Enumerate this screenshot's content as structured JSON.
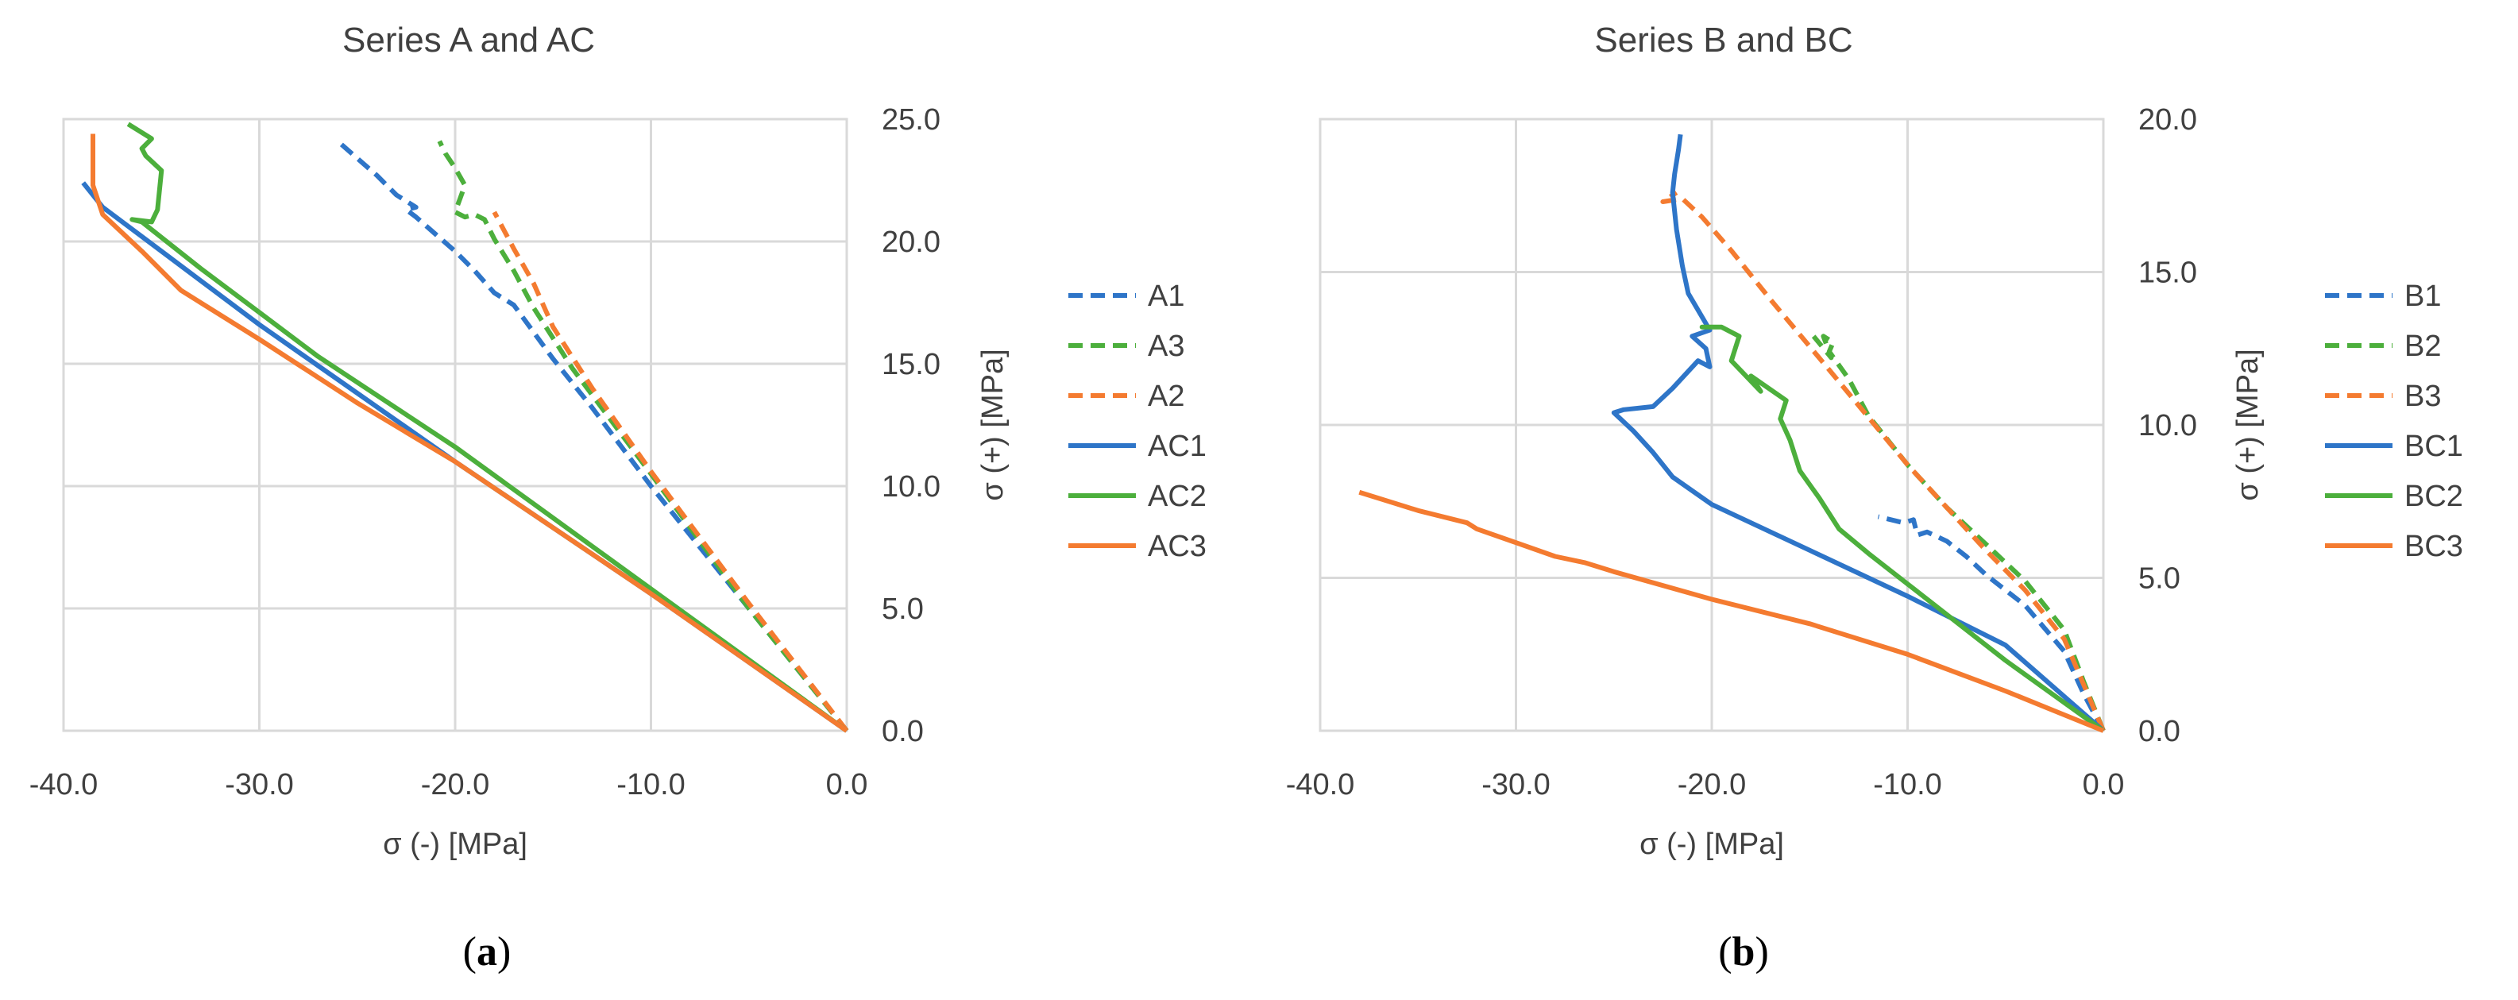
{
  "chart_data": [
    {
      "type": "line",
      "title": "Series A and AC",
      "xlabel": "σ (-) [MPa]",
      "ylabel": "σ (+) [MPa]",
      "panel_tag": "a",
      "xlim": [
        -40,
        0
      ],
      "ylim": [
        0,
        25
      ],
      "xticks": [
        -40,
        -30,
        -20,
        -10,
        0
      ],
      "xtick_labels": [
        "-40.0",
        "-30.0",
        "-20.0",
        "-10.0",
        "0.0"
      ],
      "yticks": [
        0,
        5,
        10,
        15,
        20,
        25
      ],
      "ytick_labels": [
        "0.0",
        "5.0",
        "10.0",
        "15.0",
        "20.0",
        "25.0"
      ],
      "grid": true,
      "y_axis_side": "right",
      "legend_position": "right",
      "series": [
        {
          "name": "A1",
          "color": "#2E75C8",
          "dash": "dashed",
          "x": [
            0,
            -5,
            -10,
            -13,
            -15,
            -17,
            -18,
            -19,
            -20,
            -21,
            -22,
            -22.5,
            -22,
            -23,
            -24,
            -25,
            -26
          ],
          "y": [
            0,
            5,
            10,
            13.2,
            15.2,
            17.4,
            17.9,
            18.8,
            19.6,
            20.3,
            21,
            21.3,
            21.4,
            21.9,
            22.7,
            23.4,
            24.1
          ]
        },
        {
          "name": "A3",
          "color": "#4CAF3C",
          "dash": "dashed",
          "x": [
            0,
            -5,
            -10,
            -14,
            -16,
            -17,
            -18,
            -18.5,
            -19,
            -19.5,
            -20,
            -19.5,
            -20,
            -20.5,
            -20.8
          ],
          "y": [
            0,
            5,
            10.5,
            14.8,
            17.3,
            18.8,
            20.1,
            20.9,
            21.1,
            21.0,
            21.2,
            22.3,
            23.0,
            23.6,
            24.1
          ]
        },
        {
          "name": "A2",
          "color": "#F47B30",
          "dash": "dashed",
          "x": [
            0,
            -5,
            -10,
            -13,
            -15,
            -16,
            -17,
            -18
          ],
          "y": [
            0,
            5.2,
            10.6,
            14,
            16.5,
            18.3,
            19.7,
            21.2
          ]
        },
        {
          "name": "AC1",
          "color": "#2E75C8",
          "dash": "solid",
          "x": [
            0,
            -10,
            -20,
            -25,
            -30,
            -35,
            -38,
            -39
          ],
          "y": [
            0,
            5.6,
            11,
            13.8,
            16.6,
            19.6,
            21.4,
            22.4
          ]
        },
        {
          "name": "AC2",
          "color": "#4CAF3C",
          "dash": "solid",
          "x": [
            0,
            -10,
            -20,
            -27,
            -30,
            -33,
            -36,
            -36.5,
            -35.5,
            -35.2,
            -35,
            -35.8,
            -36,
            -35.5,
            -36.7
          ],
          "y": [
            0,
            5.8,
            11.6,
            15.3,
            17.1,
            18.9,
            20.8,
            20.9,
            20.8,
            21.3,
            22.9,
            23.5,
            23.8,
            24.2,
            24.8
          ]
        },
        {
          "name": "AC3",
          "color": "#F47B30",
          "dash": "solid",
          "x": [
            0,
            -10,
            -20,
            -25,
            -30,
            -34,
            -36,
            -38,
            -38.5,
            -38.5
          ],
          "y": [
            0,
            5.6,
            11,
            13.4,
            16,
            18,
            19.6,
            21.1,
            22.3,
            24.4
          ]
        }
      ]
    },
    {
      "type": "line",
      "title": "Series B and BC",
      "xlabel": "σ (-) [MPa]",
      "ylabel": "σ (+) [MPa]",
      "panel_tag": "b",
      "xlim": [
        -40,
        0
      ],
      "ylim": [
        0,
        20
      ],
      "xticks": [
        -40,
        -30,
        -20,
        -10,
        0
      ],
      "xtick_labels": [
        "-40.0",
        "-30.0",
        "-20.0",
        "-10.0",
        "0.0"
      ],
      "yticks": [
        0,
        5,
        10,
        15,
        20
      ],
      "ytick_labels": [
        "0.0",
        "5.0",
        "10.0",
        "15.0",
        "20.0"
      ],
      "grid": true,
      "y_axis_side": "right",
      "legend_position": "right",
      "series": [
        {
          "name": "B1",
          "color": "#2E75C8",
          "dash": "dashed",
          "x": [
            0,
            -1,
            -2,
            -4,
            -5,
            -6,
            -7,
            -8,
            -9,
            -9.5,
            -9.7,
            -10.2,
            -11.5
          ],
          "y": [
            0,
            1.2,
            2.6,
            4.1,
            4.6,
            5.1,
            5.7,
            6.2,
            6.5,
            6.4,
            6.9,
            6.8,
            7
          ]
        },
        {
          "name": "B2",
          "color": "#4CAF3C",
          "dash": "dashed",
          "x": [
            0,
            -1,
            -2,
            -4,
            -6,
            -8,
            -10,
            -12,
            -13,
            -14,
            -13.8,
            -14.3,
            -13.9,
            -14.8
          ],
          "y": [
            0,
            1.6,
            3.3,
            4.9,
            6.1,
            7.3,
            8.7,
            10.3,
            11.5,
            12.4,
            12.7,
            12.9,
            12.2,
            12.9
          ]
        },
        {
          "name": "B3",
          "color": "#F47B30",
          "dash": "dashed",
          "x": [
            0,
            -2,
            -4,
            -6,
            -10,
            -14,
            -17,
            -19,
            -20.5,
            -21.5,
            -22.5,
            -21.8
          ],
          "y": [
            0,
            3,
            4.6,
            5.9,
            8.7,
            11.8,
            14.1,
            15.7,
            16.8,
            17.4,
            17.3,
            17.6
          ]
        },
        {
          "name": "BC1",
          "color": "#2E75C8",
          "dash": "solid",
          "x": [
            0,
            -5,
            -10,
            -15,
            -20,
            -22,
            -23,
            -24,
            -25,
            -24.5,
            -23,
            -22,
            -20.7,
            -20.1,
            -20.3,
            -21,
            -20.1,
            -21.2,
            -21.5,
            -21.8,
            -22,
            -21.9,
            -21.7,
            -21.6
          ],
          "y": [
            0,
            2.8,
            4.4,
            5.9,
            7.4,
            8.3,
            9.1,
            9.8,
            10.4,
            10.5,
            10.6,
            11.2,
            12.1,
            11.9,
            12.5,
            12.9,
            13.1,
            14.3,
            15.2,
            16.4,
            17.6,
            18.2,
            19.0,
            19.5
          ]
        },
        {
          "name": "BC2",
          "color": "#4CAF3C",
          "dash": "solid",
          "x": [
            0,
            -5,
            -10,
            -12,
            -13.5,
            -14.5,
            -15.5,
            -16,
            -16.5,
            -16.2,
            -18,
            -17.5,
            -19,
            -18.6,
            -19.5,
            -20.5,
            -19.8
          ],
          "y": [
            0,
            2.3,
            4.8,
            5.8,
            6.6,
            7.6,
            8.5,
            9.5,
            10.2,
            10.8,
            11.6,
            11.1,
            12.1,
            12.9,
            13.2,
            13.2,
            13.2
          ]
        },
        {
          "name": "BC3",
          "color": "#F47B30",
          "dash": "solid",
          "x": [
            0,
            -5,
            -10,
            -15,
            -20,
            -25,
            -26.5,
            -28,
            -32,
            -32.5,
            -35,
            -38
          ],
          "y": [
            0,
            1.3,
            2.5,
            3.5,
            4.3,
            5.2,
            5.5,
            5.7,
            6.6,
            6.8,
            7.2,
            7.8
          ]
        }
      ]
    }
  ]
}
